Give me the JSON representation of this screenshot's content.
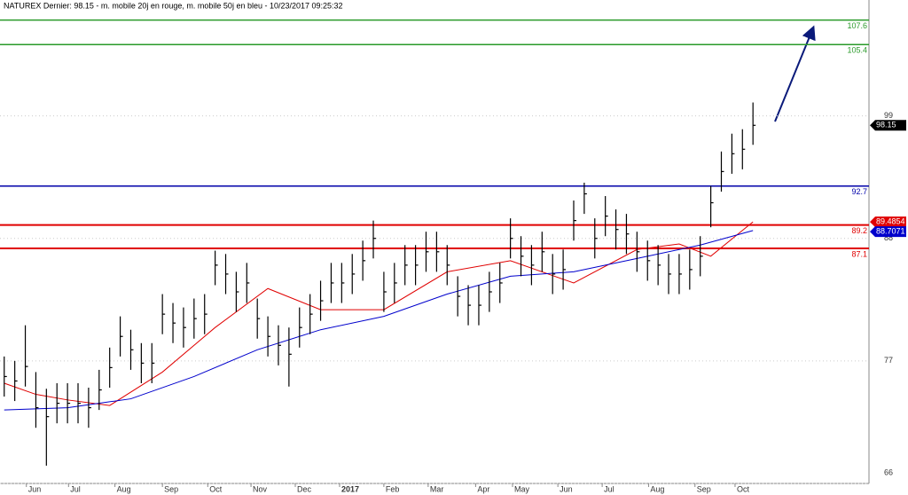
{
  "chart_data": {
    "type": "ohlc",
    "title": "NATUREX Dernier: 98.15 - m. mobile 20j en rouge, m. mobile 50j en bleu - 10/23/2017 09:25:32",
    "ylim": [
      66,
      109.4
    ],
    "yticks": [
      66,
      77,
      88,
      99
    ],
    "grid": true,
    "bar_color": "#000000",
    "xlim": [
      -0.4,
      82
    ],
    "xticks": [
      {
        "value": 2.1,
        "label": "Jun"
      },
      {
        "value": 6.1,
        "label": "Jul"
      },
      {
        "value": 10.5,
        "label": "Aug"
      },
      {
        "value": 15,
        "label": "Sep"
      },
      {
        "value": 19.3,
        "label": "Oct"
      },
      {
        "value": 23.4,
        "label": "Nov"
      },
      {
        "value": 27.6,
        "label": "Dec"
      },
      {
        "value": 31.8,
        "label": "2017"
      },
      {
        "value": 36,
        "label": "Feb"
      },
      {
        "value": 40.2,
        "label": "Mar"
      },
      {
        "value": 44.7,
        "label": "Apr"
      },
      {
        "value": 48.2,
        "label": "May"
      },
      {
        "value": 52.5,
        "label": "Jun"
      },
      {
        "value": 56.7,
        "label": "Jul"
      },
      {
        "value": 61.1,
        "label": "Aug"
      },
      {
        "value": 65.5,
        "label": "Sep"
      },
      {
        "value": 69.3,
        "label": "Oct"
      }
    ],
    "close": [
      75.6,
      75.2,
      76.5,
      72.8,
      72.0,
      73.2,
      73.2,
      73.2,
      72.8,
      74.4,
      76.4,
      79.2,
      78.0,
      76.8,
      76.8,
      81.2,
      80.4,
      80.0,
      80.8,
      81.2,
      85.6,
      84.8,
      83.2,
      84.0,
      80.8,
      79.2,
      78.4,
      77.6,
      80.0,
      81.2,
      82.4,
      84.0,
      84.0,
      84.8,
      86.0,
      88.0,
      83.2,
      84.0,
      85.6,
      85.6,
      86.8,
      86.8,
      85.6,
      82.8,
      82.0,
      82.0,
      83.2,
      84.0,
      88.0,
      86.4,
      85.6,
      86.8,
      84.8,
      85.2,
      89.6,
      92.0,
      88.0,
      90.0,
      88.8,
      88.4,
      86.8,
      86.0,
      85.6,
      84.8,
      84.8,
      85.2,
      86.4,
      91.2,
      94.0,
      95.6,
      96.0,
      98.15
    ],
    "high": [
      77.4,
      77.0,
      80.2,
      76.0,
      74.5,
      75.0,
      75.0,
      75.0,
      74.6,
      76.2,
      78.2,
      81.0,
      79.8,
      78.6,
      78.6,
      83.0,
      82.2,
      81.8,
      82.6,
      83.0,
      86.9,
      86.6,
      85.0,
      85.8,
      82.6,
      81.0,
      80.2,
      80.0,
      81.8,
      83.0,
      84.2,
      85.8,
      85.8,
      86.6,
      87.8,
      89.6,
      85.0,
      85.8,
      87.4,
      87.4,
      88.6,
      88.6,
      87.4,
      84.6,
      83.8,
      83.8,
      85.0,
      85.8,
      89.8,
      88.2,
      87.4,
      88.6,
      86.6,
      87.0,
      91.4,
      93.0,
      89.8,
      91.8,
      90.6,
      90.2,
      88.6,
      87.8,
      87.4,
      86.6,
      86.6,
      87.0,
      88.2,
      92.7,
      95.8,
      97.4,
      97.8,
      100.2
    ],
    "low": [
      73.8,
      73.4,
      74.7,
      71.0,
      67.6,
      71.4,
      71.4,
      71.4,
      71.0,
      72.6,
      74.6,
      77.4,
      76.2,
      75.0,
      75.0,
      79.4,
      78.6,
      78.2,
      79.0,
      79.4,
      83.8,
      83.0,
      81.4,
      82.2,
      79.0,
      77.4,
      76.6,
      74.7,
      78.2,
      79.4,
      80.6,
      82.2,
      82.2,
      83.0,
      84.2,
      86.2,
      81.4,
      82.2,
      83.8,
      83.8,
      85.0,
      85.0,
      83.8,
      81.0,
      80.2,
      80.2,
      81.4,
      82.2,
      86.2,
      84.6,
      83.8,
      85.0,
      83.0,
      83.4,
      87.8,
      90.2,
      86.2,
      88.2,
      87.0,
      86.6,
      85.0,
      84.2,
      83.8,
      83.0,
      83.0,
      83.4,
      84.6,
      89.0,
      92.2,
      93.8,
      94.2,
      96.4
    ],
    "series": [
      {
        "color": "#e00000",
        "x": [
          0,
          3,
          6,
          10,
          15,
          20,
          25,
          30,
          36,
          42,
          48,
          54,
          60,
          64,
          67,
          71
        ],
        "values": [
          75.0,
          74.0,
          73.5,
          73.0,
          76.0,
          80.0,
          83.5,
          81.6,
          81.6,
          85.0,
          86.0,
          84.0,
          87.0,
          87.5,
          86.4,
          89.4854
        ]
      },
      {
        "color": "#0000cc",
        "x": [
          0,
          6,
          12,
          18,
          24,
          30,
          36,
          42,
          48,
          54,
          60,
          66,
          71
        ],
        "values": [
          72.6,
          72.8,
          73.6,
          75.6,
          78.0,
          79.8,
          81.0,
          83.0,
          84.6,
          85.0,
          86.2,
          87.4,
          88.7071
        ]
      }
    ],
    "levels": [
      {
        "value": 107.6,
        "color": "#2a9a2a"
      },
      {
        "value": 105.4,
        "color": "#2a9a2a"
      },
      {
        "value": 92.7,
        "color": "#0000aa"
      },
      {
        "value": 89.2,
        "color": "#e00000"
      },
      {
        "value": 87.1,
        "color": "#e00000"
      }
    ],
    "price_labels": [
      {
        "value": 98.15,
        "color": "#000000"
      },
      {
        "value": 89.4854,
        "color": "#e00000"
      },
      {
        "value": 88.7071,
        "color": "#0000cc"
      }
    ]
  }
}
